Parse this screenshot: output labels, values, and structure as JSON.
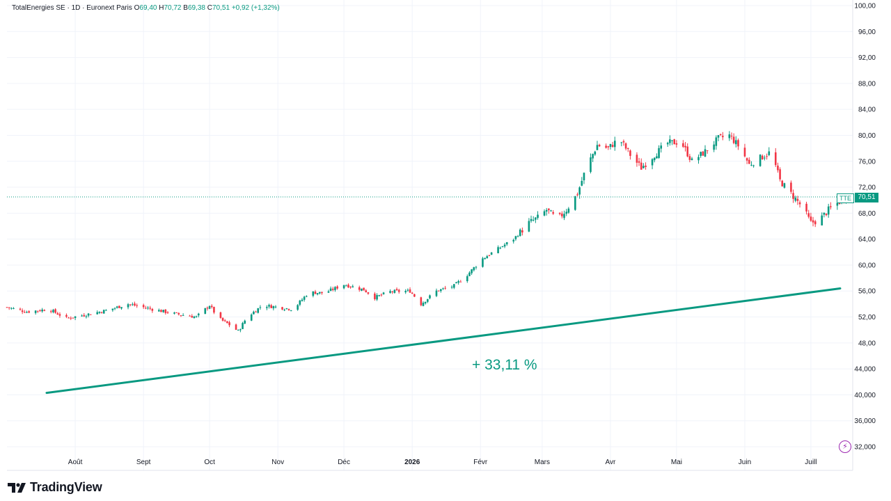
{
  "legend": {
    "symbol": "TotalEnergies SE · 1D · Euronext Paris",
    "open_label": "O",
    "open": "69,40",
    "high_label": "H",
    "high": "70,72",
    "low_label": "B",
    "low": "69,38",
    "close_label": "C",
    "close": "70,51",
    "change": "+0,92 (+1,32%)"
  },
  "price_tag": {
    "symbol": "TTE",
    "last": "70,51"
  },
  "annotation": "+ 33,11 %",
  "brand": {
    "name": "TradingView"
  },
  "colors": {
    "up": "#089981",
    "down": "#f23645",
    "grid": "#f0f3fa",
    "text": "#131722",
    "trend": "#089981"
  },
  "chart_data": {
    "type": "line",
    "title": "",
    "xlabel": "",
    "ylabel": "",
    "ylim": [
      30,
      100
    ],
    "grid": true,
    "y_ticks": [
      "100,00",
      "96,00",
      "92,00",
      "88,00",
      "84,00",
      "80,00",
      "76,00",
      "72,00",
      "68,00",
      "64,00",
      "60,00",
      "56,00",
      "52,00",
      "48,00",
      "44,000",
      "40,000",
      "36,000",
      "32,000"
    ],
    "y_tick_values": [
      100,
      96,
      92,
      88,
      84,
      80,
      76,
      72,
      68,
      64,
      60,
      56,
      52,
      48,
      44,
      40,
      36,
      32
    ],
    "x_ticks": [
      "Août",
      "Sept",
      "Oct",
      "Nov",
      "Déc",
      "2026",
      "Févr",
      "Mars",
      "Avr",
      "Mai",
      "Juin",
      "Juill"
    ],
    "x_tick_dates": [
      "2025-08-01",
      "2025-09-01",
      "2025-10-01",
      "2025-11-01",
      "2025-12-01",
      "2026-01-01",
      "2026-02-01",
      "2026-03-01",
      "2026-04-01",
      "2026-05-01",
      "2026-06-01",
      "2026-07-01"
    ],
    "x_range": [
      "2025-07-01",
      "2026-07-20"
    ],
    "series": [
      {
        "kind": "price",
        "points": [
          [
            "2025-07-01",
            53.5
          ],
          [
            "2025-07-10",
            52.8
          ],
          [
            "2025-07-20",
            53.2
          ],
          [
            "2025-07-28",
            51.8
          ],
          [
            "2025-08-05",
            52.3
          ],
          [
            "2025-08-15",
            53.0
          ],
          [
            "2025-08-25",
            54.0
          ],
          [
            "2025-09-05",
            53.2
          ],
          [
            "2025-09-15",
            52.5
          ],
          [
            "2025-09-25",
            52.0
          ],
          [
            "2025-10-01",
            53.8
          ],
          [
            "2025-10-05",
            51.8
          ],
          [
            "2025-10-10",
            50.8
          ],
          [
            "2025-10-14",
            49.8
          ],
          [
            "2025-10-18",
            52.0
          ],
          [
            "2025-10-25",
            53.8
          ],
          [
            "2025-11-01",
            53.5
          ],
          [
            "2025-11-08",
            53.2
          ],
          [
            "2025-11-15",
            55.8
          ],
          [
            "2025-11-22",
            55.7
          ],
          [
            "2025-12-01",
            57.0
          ],
          [
            "2025-12-10",
            56.2
          ],
          [
            "2025-12-15",
            55.0
          ],
          [
            "2025-12-22",
            55.9
          ],
          [
            "2025-12-31",
            56.0
          ],
          [
            "2026-01-05",
            54.0
          ],
          [
            "2026-01-12",
            56.0
          ],
          [
            "2026-01-20",
            56.8
          ],
          [
            "2026-01-26",
            58.5
          ],
          [
            "2026-02-02",
            61.0
          ],
          [
            "2026-02-09",
            62.5
          ],
          [
            "2026-02-16",
            64.0
          ],
          [
            "2026-02-23",
            66.5
          ],
          [
            "2026-02-28",
            67.5
          ],
          [
            "2026-03-03",
            68.5
          ],
          [
            "2026-03-08",
            67.0
          ],
          [
            "2026-03-12",
            68.5
          ],
          [
            "2026-03-17",
            71.0
          ],
          [
            "2026-03-21",
            75.0
          ],
          [
            "2026-03-26",
            78.5
          ],
          [
            "2026-03-31",
            78.0
          ],
          [
            "2026-04-05",
            79.5
          ],
          [
            "2026-04-10",
            77.0
          ],
          [
            "2026-04-15",
            75.0
          ],
          [
            "2026-04-21",
            77.0
          ],
          [
            "2026-04-27",
            78.8
          ],
          [
            "2026-05-03",
            79.0
          ],
          [
            "2026-05-08",
            76.0
          ],
          [
            "2026-05-14",
            77.5
          ],
          [
            "2026-05-20",
            79.5
          ],
          [
            "2026-05-25",
            80.0
          ],
          [
            "2026-05-30",
            78.0
          ],
          [
            "2026-06-03",
            75.5
          ],
          [
            "2026-06-08",
            76.5
          ],
          [
            "2026-06-13",
            77.5
          ],
          [
            "2026-06-17",
            73.0
          ],
          [
            "2026-06-22",
            71.0
          ],
          [
            "2026-06-27",
            69.0
          ],
          [
            "2026-07-01",
            66.5
          ],
          [
            "2026-07-05",
            67.0
          ],
          [
            "2026-07-09",
            68.5
          ],
          [
            "2026-07-13",
            69.5
          ],
          [
            "2026-07-17",
            70.51
          ]
        ]
      },
      {
        "kind": "trendline",
        "points": [
          [
            "2025-07-19",
            40.3
          ],
          [
            "2026-07-20",
            56.4
          ]
        ]
      }
    ],
    "last_price": 70.51
  }
}
